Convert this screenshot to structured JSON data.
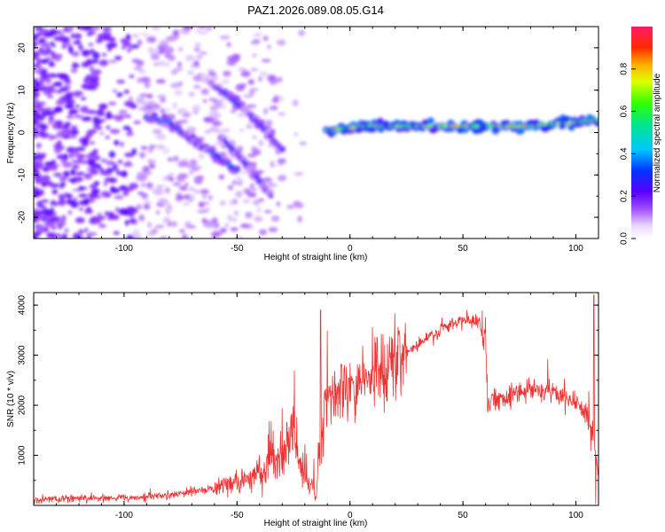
{
  "title": "PAZ1.2026.089.08.05.G14",
  "chart_data": [
    {
      "type": "heatmap",
      "name": "spectrogram",
      "xlabel": "Height of straight line (km)",
      "ylabel": "Frequency (Hz)",
      "xlim": [
        -140,
        110
      ],
      "ylim": [
        -25,
        25
      ],
      "xticks": [
        -100,
        -50,
        0,
        50,
        100
      ],
      "yticks": [
        -20,
        -10,
        0,
        10,
        20
      ],
      "colorbar": {
        "label": "Normalized spectral amplitude",
        "range": [
          0,
          1
        ],
        "ticks": [
          0.0,
          0.2,
          0.4,
          0.6,
          0.8
        ],
        "colormap": "rainbow (white-violet-blue-cyan-green-yellow-orange-red-magenta)"
      },
      "features": [
        {
          "name": "main-signal-track",
          "x": [
            -10,
            0,
            5,
            20,
            50,
            80,
            100,
            110
          ],
          "freq": [
            0.5,
            1,
            1.5,
            1.5,
            1.5,
            1.5,
            2.5,
            3
          ],
          "amplitude": 0.75
        },
        {
          "name": "low-altitude-branch",
          "x": [
            -90,
            -80,
            -70,
            -60,
            -50
          ],
          "freq": [
            3.5,
            2.5,
            -2,
            -5,
            -9
          ],
          "amplitude": 0.35
        },
        {
          "name": "multipath-branch-1",
          "x": [
            -60,
            -50,
            -40,
            -30
          ],
          "freq": [
            11,
            7,
            2,
            -4
          ],
          "amplitude": 0.3
        },
        {
          "name": "multipath-branch-2",
          "x": [
            -57,
            -50,
            -42,
            -35
          ],
          "freq": [
            -1,
            -5,
            -10,
            -15
          ],
          "amplitude": 0.3
        }
      ]
    },
    {
      "type": "line",
      "name": "snr",
      "xlabel": "Height of straight line (km)",
      "ylabel": "SNR (10 * v/v)",
      "xlim": [
        -140,
        110
      ],
      "ylim": [
        0,
        4250
      ],
      "xticks": [
        -100,
        -50,
        0,
        50,
        100
      ],
      "yticks": [
        1000,
        2000,
        3000,
        4000
      ],
      "color": "#ee3333",
      "series": [
        {
          "name": "SNR",
          "x": [
            -140,
            -120,
            -100,
            -80,
            -60,
            -50,
            -40,
            -30,
            -25,
            -20,
            -15,
            -12,
            -10,
            -5,
            0,
            10,
            20,
            30,
            40,
            50,
            58,
            60,
            61,
            70,
            80,
            90,
            95,
            100,
            105,
            108,
            110
          ],
          "values": [
            100,
            150,
            150,
            200,
            350,
            450,
            600,
            1000,
            1350,
            600,
            180,
            1800,
            2100,
            2300,
            2200,
            2600,
            2900,
            3200,
            3500,
            3700,
            3650,
            3450,
            2050,
            2200,
            2350,
            2250,
            2150,
            2100,
            1800,
            1300,
            600
          ]
        }
      ],
      "annotations": [
        {
          "x": -13,
          "peak": 3900,
          "note": "spike"
        },
        {
          "x": 108,
          "peak": 4200,
          "note": "spike"
        }
      ]
    }
  ]
}
